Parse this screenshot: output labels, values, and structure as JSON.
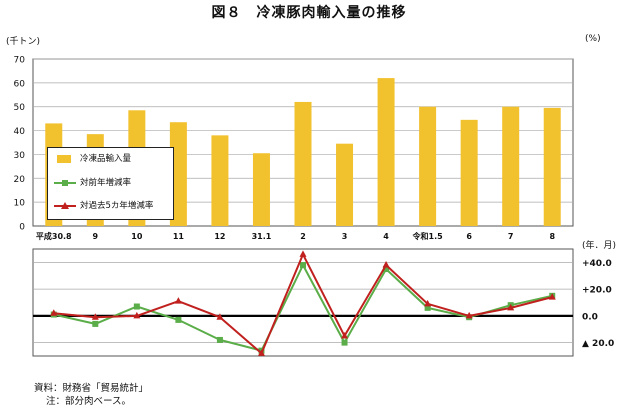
{
  "title": "図８　冷凍豚肉輸入量の推移",
  "unit_left": "(千トン)",
  "unit_right": "(%)",
  "unit_right2": "(年．月)",
  "colors": {
    "bar": "#f2c12e",
    "yoy": "#5aad48",
    "vs5y": "#c0201e"
  },
  "legend": {
    "bar": "冷凍品輸入量",
    "yoy": "対前年増減率",
    "vs5y": "対過去5カ年増減率"
  },
  "notes": {
    "source": "資料：財務省「貿易統計」",
    "note": "注：部分肉ベース。"
  },
  "chart_data": [
    {
      "type": "bar",
      "series_name": "冷凍品輸入量",
      "categories": [
        "平成30.8",
        "9",
        "10",
        "11",
        "12",
        "31.1",
        "2",
        "3",
        "4",
        "令和1.5",
        "6",
        "7",
        "8"
      ],
      "values": [
        43,
        38.5,
        48.5,
        43.5,
        38,
        30.5,
        52,
        34.5,
        62,
        50,
        44.5,
        50,
        49.5
      ],
      "ylim": [
        0,
        70
      ],
      "yticks": [
        0,
        10,
        20,
        30,
        40,
        50,
        60,
        70
      ],
      "ylabel": "(千トン)",
      "grid": true,
      "legend_position": "left-middle"
    },
    {
      "type": "line",
      "categories": [
        "平成30.8",
        "9",
        "10",
        "11",
        "12",
        "31.1",
        "2",
        "3",
        "4",
        "令和1.5",
        "6",
        "7",
        "8"
      ],
      "series": [
        {
          "name": "対前年増減率",
          "values": [
            1,
            -6,
            7,
            -3,
            -18,
            -26,
            38,
            -20,
            35,
            6,
            -1,
            8,
            15
          ]
        },
        {
          "name": "対過去5カ年増減率",
          "values": [
            2,
            -1,
            0,
            11,
            -1,
            -28,
            46,
            -15,
            38,
            9,
            0,
            6,
            14
          ]
        }
      ],
      "ylim": [
        -30,
        50
      ],
      "yticks": [
        40,
        20,
        0,
        -20
      ],
      "ytick_labels": [
        "+40.0",
        "+20.0",
        "0.0",
        "▲ 20.0"
      ],
      "ylabel": "(%)",
      "xlabel": "(年．月)",
      "grid": true
    }
  ]
}
